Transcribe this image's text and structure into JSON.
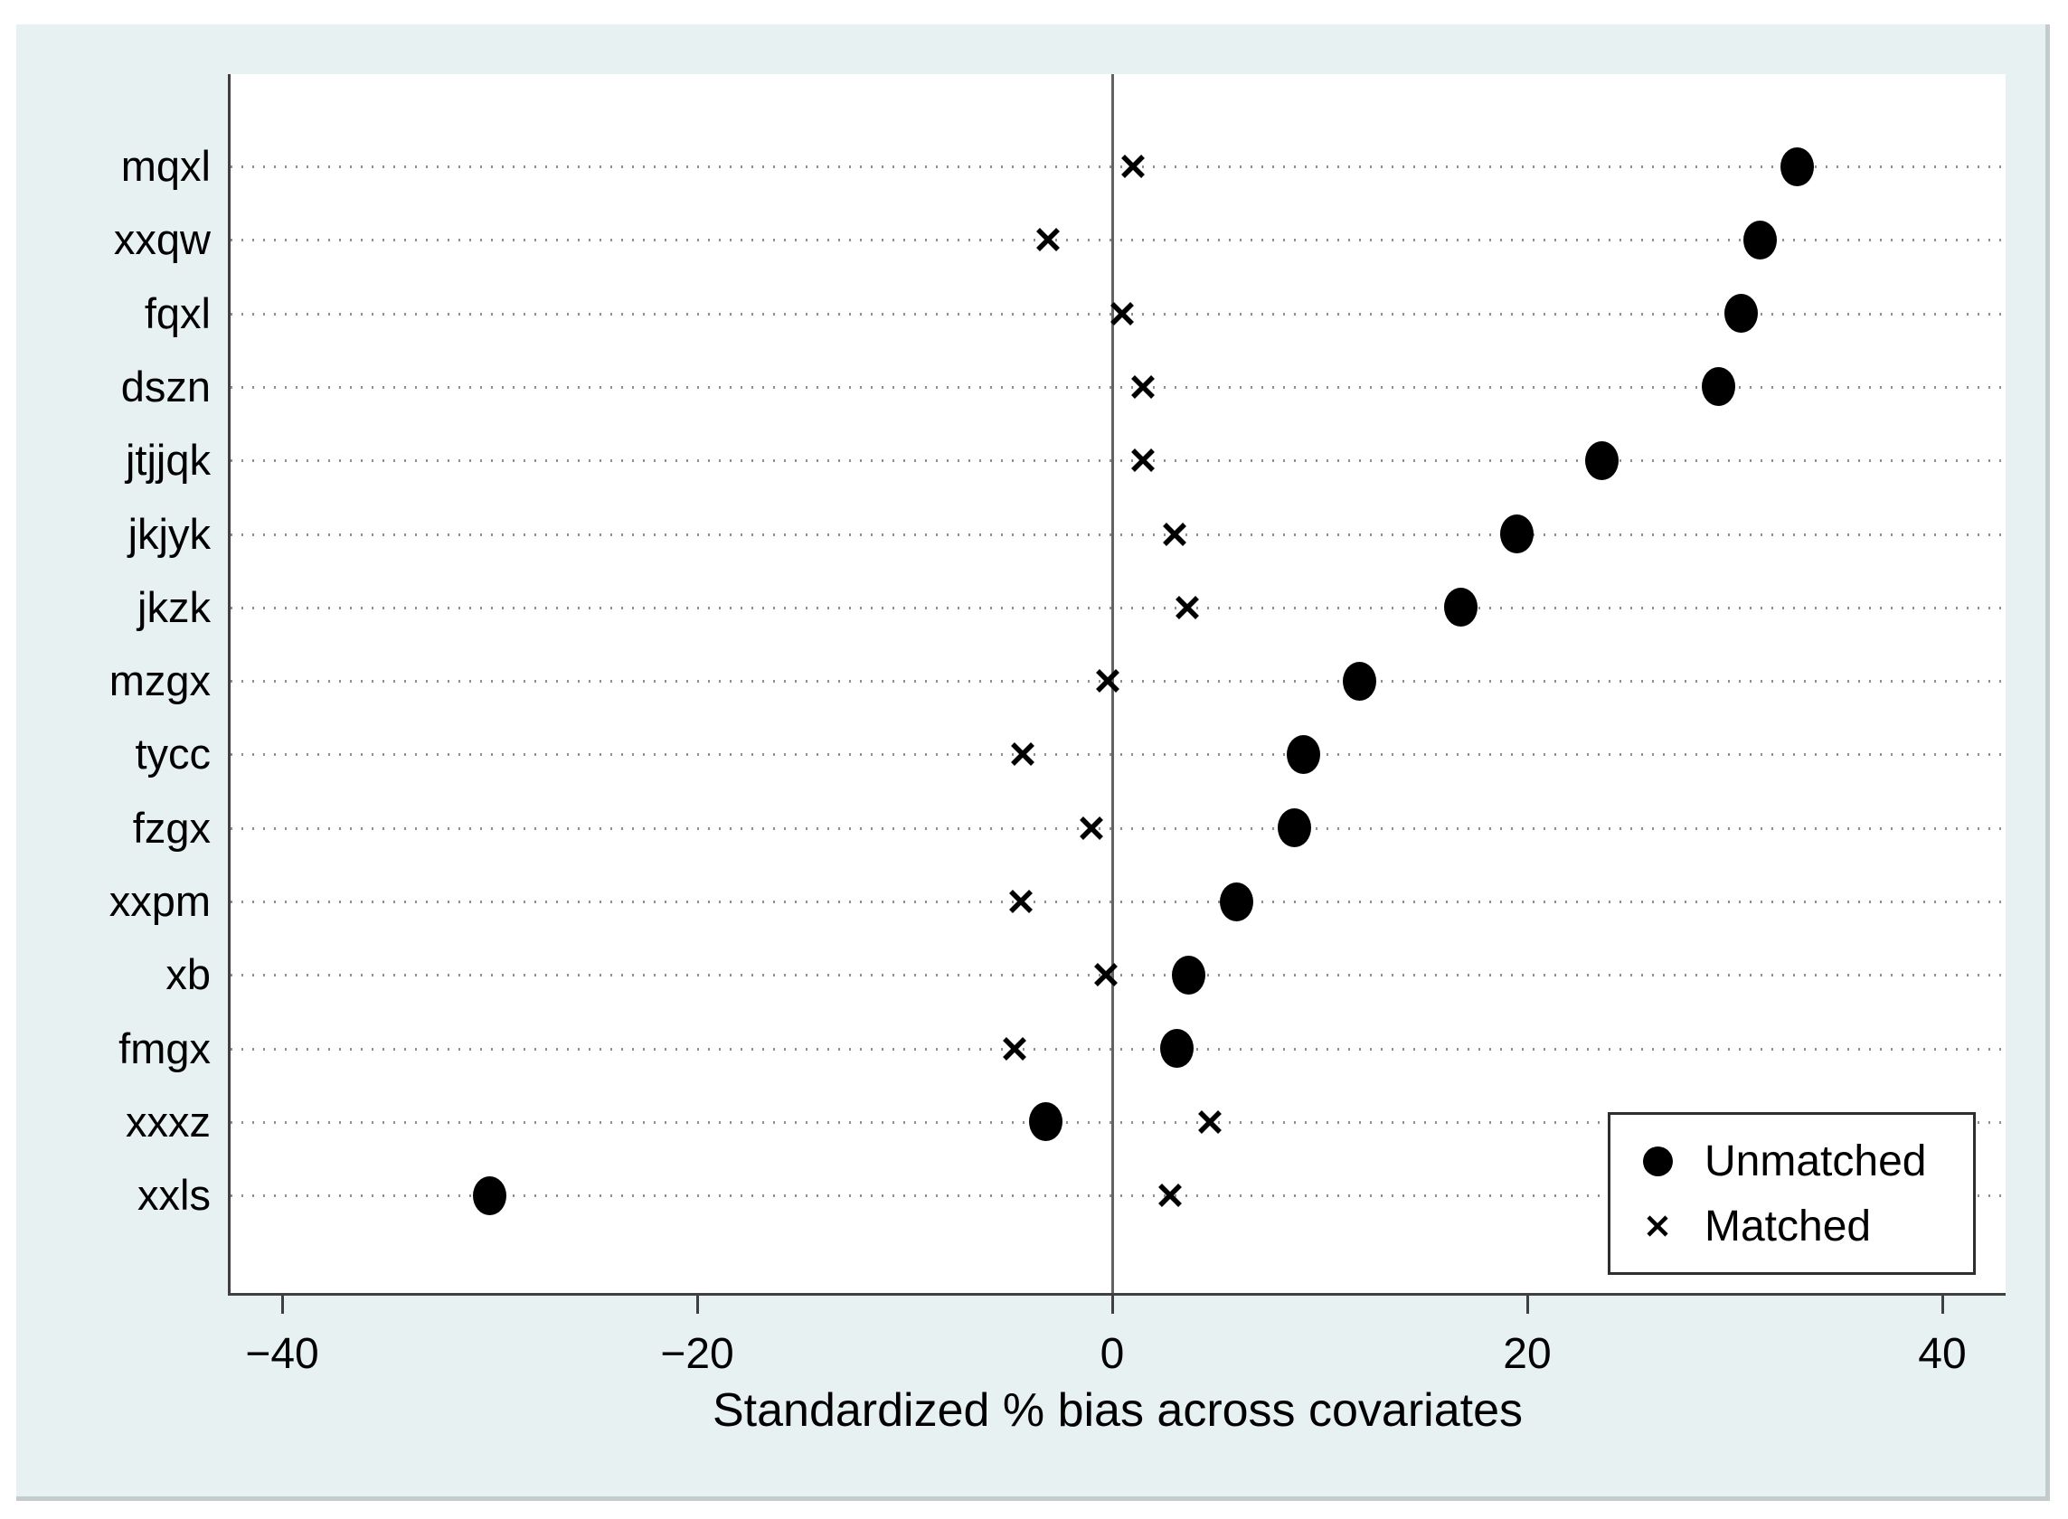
{
  "colors": {
    "figure_bg": "#e7f1f2",
    "figure_border": "#c3cbcd",
    "plot_bg": "#ffffff",
    "axis": "#3f3f3f",
    "grid": "#8f8f8f",
    "zero_line": "#636363",
    "marker": "#000000",
    "text": "#000000",
    "legend_border": "#2e2e2e"
  },
  "chart_data": {
    "type": "scatter",
    "title": "",
    "xlabel": "Standardized % bias across covariates",
    "ylabel": "",
    "categories": [
      "mqxl",
      "xxqw",
      "fqxl",
      "dszn",
      "jtjjqk",
      "jkjyk",
      "jkzk",
      "mzgx",
      "tycc",
      "fzgx",
      "xxpm",
      "xb",
      "fmgx",
      "xxxz",
      "xxls"
    ],
    "series": [
      {
        "name": "Unmatched",
        "marker": "filled-circle",
        "values": [
          33.0,
          31.2,
          30.3,
          29.2,
          23.6,
          19.5,
          16.8,
          11.9,
          9.2,
          8.8,
          6.0,
          3.7,
          3.1,
          -3.2,
          -30.0
        ]
      },
      {
        "name": "Matched",
        "marker": "x-cross",
        "values": [
          1.0,
          -3.1,
          0.5,
          1.5,
          1.5,
          3.0,
          3.6,
          -0.2,
          -4.3,
          -1.0,
          -4.4,
          -0.3,
          -4.7,
          4.7,
          2.8
        ]
      }
    ],
    "x_ticks": [
      -40,
      -20,
      0,
      20,
      40
    ],
    "x_tick_labels": [
      "−40",
      "−20",
      "0",
      "20",
      "40"
    ],
    "xlim": [
      -42.5,
      43.2
    ],
    "zero_line": true,
    "grid": "horizontal dotted line per category",
    "legend": {
      "position": "bottom-right",
      "entries": [
        "Unmatched",
        "Matched"
      ]
    }
  }
}
